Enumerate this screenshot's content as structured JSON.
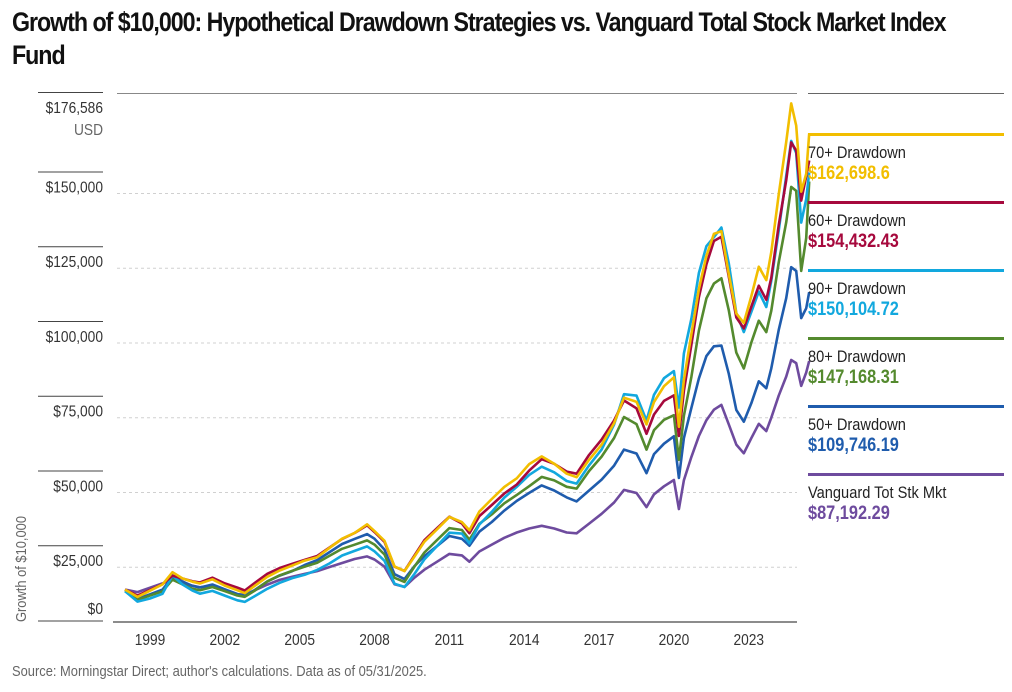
{
  "title": "Growth of $10,000: Hypothetical Drawdown Strategies vs. Vanguard Total Stock Market Index Fund",
  "source": "Source: Morningstar Direct; author's calculations. Data as of 05/31/2025.",
  "chart_data": {
    "type": "line",
    "title": "Growth of $10,000: Hypothetical Drawdown Strategies vs. Vanguard Total Stock Market Index Fund",
    "xlabel": "",
    "ylabel": "Growth of $10,000",
    "y_unit_label": "USD",
    "ylim": [
      0,
      176586
    ],
    "xlim": [
      1998.0,
      2025.5
    ],
    "y_ticks": [
      {
        "value": 0,
        "label": "$0"
      },
      {
        "value": 25000,
        "label": "$25,000"
      },
      {
        "value": 50000,
        "label": "$50,000"
      },
      {
        "value": 75000,
        "label": "$75,000"
      },
      {
        "value": 100000,
        "label": "$100,000"
      },
      {
        "value": 125000,
        "label": "$125,000"
      },
      {
        "value": 150000,
        "label": "$150,000"
      },
      {
        "value": 176586,
        "label": "$176,586"
      }
    ],
    "x_ticks": [
      1999,
      2002,
      2005,
      2008,
      2011,
      2014,
      2017,
      2020,
      2023
    ],
    "grid": "horizontal dotted",
    "legend_position": "right",
    "x": [
      1998.0,
      1998.5,
      1999.0,
      1999.5,
      1999.9,
      2000.3,
      2000.7,
      2001.0,
      2001.5,
      2002.0,
      2002.5,
      2002.8,
      2003.2,
      2003.7,
      2004.2,
      2004.7,
      2005.2,
      2005.7,
      2006.2,
      2006.7,
      2007.2,
      2007.7,
      2008.0,
      2008.4,
      2008.8,
      2009.2,
      2009.6,
      2010.0,
      2010.5,
      2011.0,
      2011.5,
      2011.8,
      2012.2,
      2012.7,
      2013.2,
      2013.7,
      2014.2,
      2014.7,
      2015.2,
      2015.7,
      2016.1,
      2016.6,
      2017.1,
      2017.6,
      2018.0,
      2018.5,
      2018.9,
      2019.2,
      2019.6,
      2020.0,
      2020.2,
      2020.4,
      2020.7,
      2021.0,
      2021.3,
      2021.6,
      2021.9,
      2022.2,
      2022.5,
      2022.8,
      2023.1,
      2023.4,
      2023.7,
      2023.9,
      2024.2,
      2024.5,
      2024.7,
      2024.9,
      2025.1,
      2025.3,
      2025.42
    ],
    "series": [
      {
        "name": "70+ Drawdown",
        "color": "#F2BE00",
        "final_value_label": "$162,698.6",
        "values": [
          10500,
          8000,
          10000,
          12000,
          16000,
          14000,
          13000,
          12500,
          14000,
          12000,
          10500,
          9500,
          12000,
          15000,
          17000,
          18500,
          20000,
          21000,
          24000,
          27000,
          29000,
          32000,
          30000,
          27000,
          18500,
          17000,
          22000,
          27000,
          31000,
          35000,
          33000,
          30000,
          36000,
          40000,
          44000,
          47000,
          52000,
          55000,
          53000,
          50000,
          49000,
          55000,
          60000,
          67000,
          75000,
          73000,
          65000,
          72000,
          77000,
          80000,
          64000,
          80000,
          96000,
          112000,
          124000,
          132000,
          133000,
          118000,
          104000,
          100000,
          108000,
          117000,
          112000,
          121000,
          140000,
          158000,
          172000,
          166000,
          145000,
          152000,
          163000
        ]
      },
      {
        "name": "60+ Drawdown",
        "color": "#A6093D",
        "final_value_label": "$154,432.43",
        "values": [
          10500,
          8500,
          10500,
          12500,
          15500,
          14500,
          13500,
          13000,
          14500,
          12500,
          11000,
          10000,
          12500,
          15500,
          17500,
          19000,
          20500,
          22000,
          25000,
          28000,
          30000,
          32500,
          30000,
          26500,
          18000,
          16500,
          21500,
          26500,
          30500,
          34500,
          32500,
          29500,
          35500,
          39500,
          43500,
          46500,
          51000,
          54500,
          52500,
          49500,
          48500,
          54500,
          59500,
          66000,
          73000,
          71000,
          63000,
          70000,
          75000,
          77000,
          63000,
          78000,
          93000,
          108000,
          118000,
          125000,
          126000,
          113000,
          100000,
          97000,
          105000,
          113000,
          109000,
          117000,
          135000,
          150000,
          162000,
          158000,
          140000,
          147000,
          154000
        ]
      },
      {
        "name": "90+ Drawdown",
        "color": "#12A8DE",
        "final_value_label": "$150,104.72",
        "values": [
          10000,
          6500,
          7500,
          9000,
          15000,
          12000,
          10000,
          9000,
          10000,
          8500,
          7000,
          6500,
          8500,
          11000,
          13000,
          14500,
          15500,
          17000,
          19000,
          21500,
          23000,
          24500,
          23000,
          20000,
          12500,
          11500,
          16000,
          21000,
          25500,
          30000,
          29500,
          26000,
          32000,
          36000,
          40500,
          44000,
          48000,
          51000,
          49500,
          47000,
          46500,
          53000,
          58500,
          67000,
          77000,
          76000,
          67000,
          75000,
          80000,
          82000,
          70000,
          88000,
          100000,
          116000,
          126000,
          130000,
          134000,
          122000,
          105000,
          98000,
          104000,
          110000,
          104000,
          112000,
          128000,
          146000,
          158000,
          155000,
          133000,
          142000,
          150000
        ]
      },
      {
        "name": "80+ Drawdown",
        "color": "#548A2E",
        "final_value_label": "$147,168.31",
        "values": [
          10000,
          7000,
          8500,
          10000,
          14000,
          12500,
          11000,
          10500,
          11500,
          10000,
          8500,
          8000,
          10000,
          13000,
          15000,
          16500,
          18000,
          19500,
          22000,
          24500,
          26000,
          27500,
          26000,
          22500,
          14500,
          13000,
          18000,
          22500,
          26500,
          30500,
          30000,
          27000,
          32500,
          36000,
          40000,
          43000,
          46000,
          49000,
          47500,
          45000,
          44000,
          49500,
          54000,
          60000,
          67000,
          65000,
          57000,
          64000,
          68000,
          70000,
          55000,
          70000,
          83000,
          98000,
          108000,
          112000,
          113000,
          102000,
          88000,
          83000,
          92000,
          100000,
          97000,
          105000,
          122000,
          136000,
          148000,
          146000,
          118000,
          128000,
          147000
        ]
      },
      {
        "name": "50+ Drawdown",
        "color": "#1F5CAD",
        "final_value_label": "$109,746.19",
        "values": [
          10500,
          7500,
          9000,
          10500,
          14500,
          13000,
          11500,
          11000,
          12000,
          10500,
          9000,
          8500,
          10500,
          13500,
          15500,
          17000,
          19000,
          20500,
          23000,
          25500,
          27000,
          28500,
          27000,
          23500,
          15500,
          14000,
          18500,
          22000,
          25500,
          29000,
          28000,
          25500,
          30000,
          33000,
          36500,
          39500,
          42000,
          44500,
          43000,
          41000,
          40000,
          44000,
          48000,
          53000,
          58500,
          57000,
          50000,
          56000,
          59000,
          61000,
          47000,
          60000,
          70000,
          80000,
          88000,
          92000,
          93000,
          84000,
          72000,
          68000,
          74000,
          81000,
          78000,
          84000,
          96000,
          106000,
          116000,
          115000,
          100000,
          104000,
          110000
        ]
      },
      {
        "name": "Vanguard Tot Stk Mkt",
        "color": "#6E4B9E",
        "final_value_label": "$87,192.29",
        "values": [
          10500,
          9500,
          11000,
          12500,
          14000,
          13000,
          12000,
          11500,
          12000,
          10500,
          9000,
          8800,
          10200,
          12000,
          13500,
          14500,
          15500,
          16500,
          18000,
          19500,
          21000,
          22000,
          21000,
          18500,
          12500,
          11500,
          14500,
          17000,
          19500,
          22000,
          21500,
          19500,
          23000,
          25500,
          28000,
          30000,
          31500,
          32500,
          31500,
          30000,
          29500,
          32500,
          35500,
          39000,
          43000,
          42000,
          37500,
          42000,
          45000,
          47500,
          38000,
          48000,
          56000,
          63000,
          68000,
          71000,
          72000,
          65000,
          58000,
          55000,
          60000,
          65000,
          63000,
          68000,
          76000,
          83000,
          89000,
          88000,
          80000,
          84000,
          87000
        ]
      }
    ]
  },
  "legend": {
    "items": [
      {
        "label": "70+ Drawdown",
        "value": "$162,698.6",
        "color": "#F2BE00"
      },
      {
        "label": "60+ Drawdown",
        "value": "$154,432.43",
        "color": "#A6093D"
      },
      {
        "label": "90+ Drawdown",
        "value": "$150,104.72",
        "color": "#12A8DE"
      },
      {
        "label": "80+ Drawdown",
        "value": "$147,168.31",
        "color": "#548A2E"
      },
      {
        "label": "50+ Drawdown",
        "value": "$109,746.19",
        "color": "#1F5CAD"
      },
      {
        "label": "Vanguard Tot Stk Mkt",
        "value": "$87,192.29",
        "color": "#6E4B9E"
      }
    ]
  }
}
